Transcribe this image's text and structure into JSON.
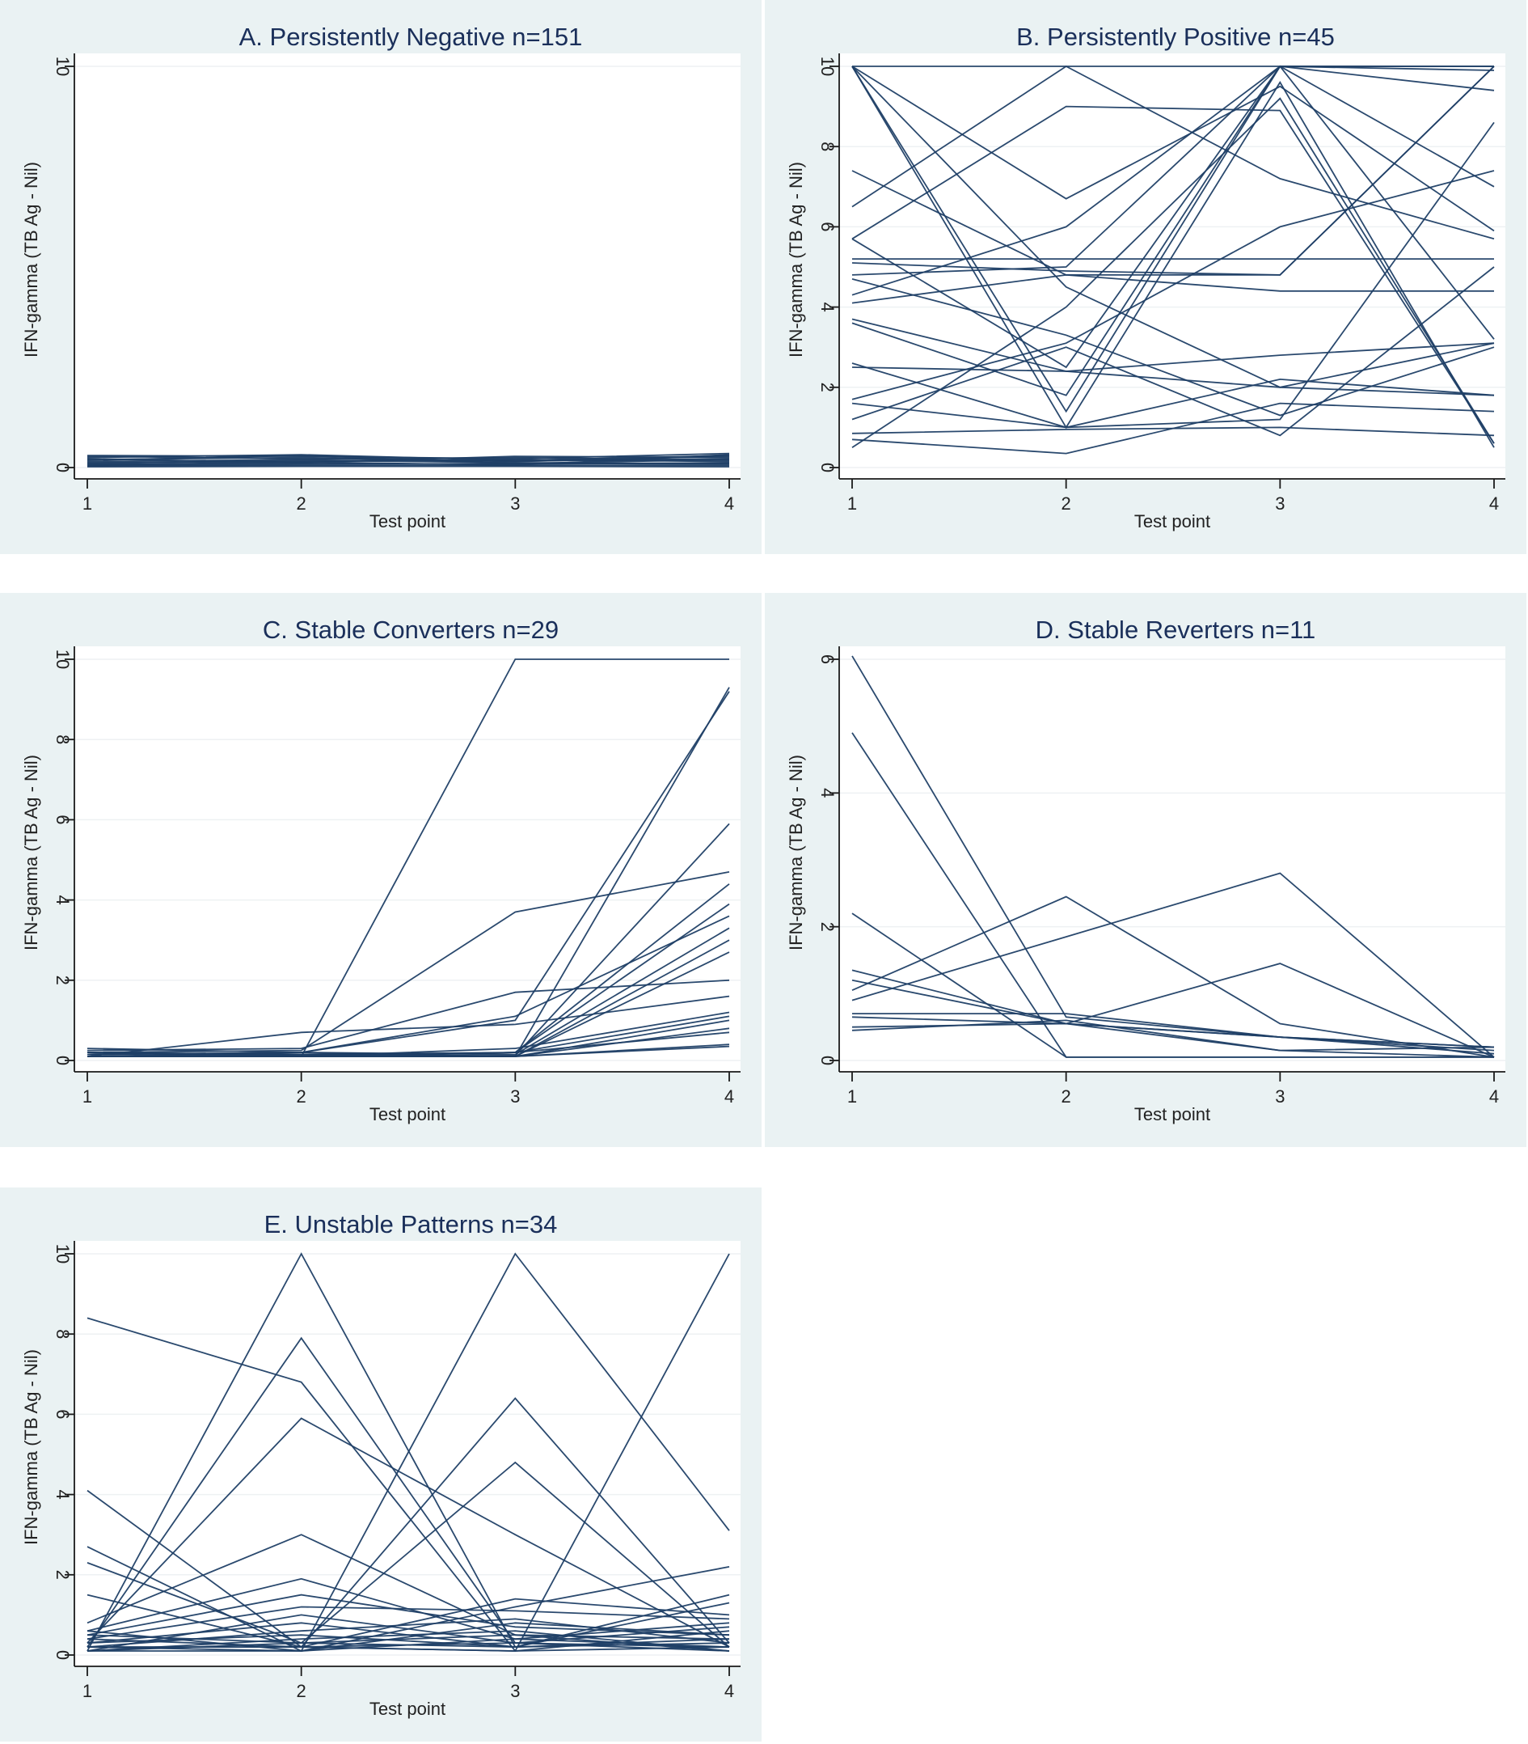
{
  "colors": {
    "line": "#1f3f66",
    "panel_bg": "#eaf2f3",
    "plot_bg": "#ffffff",
    "title": "#1a2f5a"
  },
  "chart_data": [
    {
      "type": "line",
      "panel": "A",
      "title": "A. Persistently Negative n=151",
      "xlabel": "Test point",
      "ylabel": "IFN-gamma (TB Ag - Nil)",
      "x": [
        1,
        2,
        3,
        4
      ],
      "xticks": [
        "1",
        "2",
        "3",
        "4"
      ],
      "ylim": [
        0,
        10
      ],
      "yticks": [
        "0",
        "10"
      ],
      "series": [
        {
          "values": [
            0.3,
            0.28,
            0.22,
            0.35
          ]
        },
        {
          "values": [
            0.25,
            0.32,
            0.18,
            0.3
          ]
        },
        {
          "values": [
            0.2,
            0.25,
            0.15,
            0.28
          ]
        },
        {
          "values": [
            0.18,
            0.3,
            0.1,
            0.2
          ]
        },
        {
          "values": [
            0.15,
            0.2,
            0.25,
            0.18
          ]
        },
        {
          "values": [
            0.12,
            0.15,
            0.2,
            0.15
          ]
        },
        {
          "values": [
            0.1,
            0.18,
            0.12,
            0.1
          ]
        },
        {
          "values": [
            0.08,
            0.1,
            0.08,
            0.12
          ]
        },
        {
          "values": [
            0.05,
            0.08,
            0.1,
            0.08
          ]
        },
        {
          "values": [
            0.03,
            0.05,
            0.05,
            0.05
          ]
        },
        {
          "values": [
            0.02,
            0.03,
            0.03,
            0.02
          ]
        },
        {
          "values": [
            0.22,
            0.12,
            0.28,
            0.25
          ]
        },
        {
          "values": [
            0.28,
            0.22,
            0.16,
            0.22
          ]
        },
        {
          "values": [
            0.06,
            0.14,
            0.06,
            0.32
          ]
        }
      ]
    },
    {
      "type": "line",
      "panel": "B",
      "title": "B. Persistently Positive n=45",
      "xlabel": "Test point",
      "ylabel": "IFN-gamma (TB Ag - Nil)",
      "x": [
        1,
        2,
        3,
        4
      ],
      "xticks": [
        "1",
        "2",
        "3",
        "4"
      ],
      "ylim": [
        0,
        10
      ],
      "yticks": [
        "0",
        "2",
        "4",
        "6",
        "8",
        "10"
      ],
      "series": [
        {
          "values": [
            10,
            10,
            10,
            10
          ]
        },
        {
          "values": [
            10,
            1.4,
            10,
            10
          ]
        },
        {
          "values": [
            10,
            1.0,
            9.6,
            0.5
          ]
        },
        {
          "values": [
            10,
            4.5,
            2.0,
            3.1
          ]
        },
        {
          "values": [
            10,
            6.7,
            9.5,
            5.9
          ]
        },
        {
          "values": [
            7.4,
            4.8,
            4.8,
            10
          ]
        },
        {
          "values": [
            6.5,
            10,
            7.2,
            5.7
          ]
        },
        {
          "values": [
            5.7,
            9.0,
            8.9,
            0.6
          ]
        },
        {
          "values": [
            5.7,
            2.5,
            10,
            9.9
          ]
        },
        {
          "values": [
            5.2,
            5.2,
            5.2,
            5.2
          ]
        },
        {
          "values": [
            5.1,
            4.9,
            4.8,
            10
          ]
        },
        {
          "values": [
            4.8,
            5.0,
            10,
            7.0
          ]
        },
        {
          "values": [
            4.7,
            3.3,
            1.3,
            3.0
          ]
        },
        {
          "values": [
            4.3,
            6.0,
            10,
            3.2
          ]
        },
        {
          "values": [
            4.1,
            4.8,
            4.4,
            4.4
          ]
        },
        {
          "values": [
            3.7,
            2.4,
            2.8,
            3.1
          ]
        },
        {
          "values": [
            3.6,
            1.8,
            10,
            9.4
          ]
        },
        {
          "values": [
            2.6,
            1.0,
            2.2,
            1.8
          ]
        },
        {
          "values": [
            2.5,
            2.4,
            2.0,
            1.8
          ]
        },
        {
          "values": [
            1.7,
            3.1,
            6.0,
            7.4
          ]
        },
        {
          "values": [
            1.6,
            1.0,
            1.2,
            8.6
          ]
        },
        {
          "values": [
            1.2,
            3.0,
            0.8,
            5.0
          ]
        },
        {
          "values": [
            0.85,
            0.95,
            1.0,
            0.8
          ]
        },
        {
          "values": [
            0.7,
            0.35,
            1.6,
            1.4
          ]
        },
        {
          "values": [
            0.5,
            4.0,
            9.2,
            0.6
          ]
        }
      ]
    },
    {
      "type": "line",
      "panel": "C",
      "title": "C. Stable Converters n=29",
      "xlabel": "Test point",
      "ylabel": "IFN-gamma (TB Ag - Nil)",
      "x": [
        1,
        2,
        3,
        4
      ],
      "xticks": [
        "1",
        "2",
        "3",
        "4"
      ],
      "ylim": [
        0,
        10
      ],
      "yticks": [
        "0",
        "2",
        "4",
        "6",
        "8",
        "10"
      ],
      "series": [
        {
          "values": [
            0.1,
            0.1,
            10,
            10
          ]
        },
        {
          "values": [
            0.2,
            0.25,
            3.7,
            4.7
          ]
        },
        {
          "values": [
            0.15,
            0.2,
            1.0,
            9.2
          ]
        },
        {
          "values": [
            0.1,
            0.1,
            0.1,
            9.3
          ]
        },
        {
          "values": [
            0.1,
            0.12,
            0.12,
            5.9
          ]
        },
        {
          "values": [
            0.2,
            0.15,
            0.2,
            4.4
          ]
        },
        {
          "values": [
            0.1,
            0.2,
            1.1,
            3.6
          ]
        },
        {
          "values": [
            0.3,
            0.2,
            0.15,
            3.3
          ]
        },
        {
          "values": [
            0.1,
            0.1,
            0.2,
            3.9
          ]
        },
        {
          "values": [
            0.2,
            0.1,
            0.1,
            2.7
          ]
        },
        {
          "values": [
            0.25,
            0.3,
            1.7,
            2.0
          ]
        },
        {
          "values": [
            0.1,
            0.7,
            0.9,
            1.6
          ]
        },
        {
          "values": [
            0.1,
            0.1,
            0.3,
            1.2
          ]
        },
        {
          "values": [
            0.2,
            0.1,
            0.1,
            1.0
          ]
        },
        {
          "values": [
            0.1,
            0.15,
            0.1,
            0.8
          ]
        },
        {
          "values": [
            0.2,
            0.1,
            0.2,
            0.7
          ]
        },
        {
          "values": [
            0.1,
            0.1,
            0.1,
            0.4
          ]
        },
        {
          "values": [
            0.15,
            0.2,
            0.1,
            0.35
          ]
        },
        {
          "values": [
            0.1,
            0.1,
            0.2,
            1.1
          ]
        },
        {
          "values": [
            0.2,
            0.15,
            0.1,
            3.0
          ]
        }
      ]
    },
    {
      "type": "line",
      "panel": "D",
      "title": "D. Stable Reverters n=11",
      "xlabel": "Test point",
      "ylabel": "IFN-gamma (TB Ag - Nil)",
      "x": [
        1,
        2,
        3,
        4
      ],
      "xticks": [
        "1",
        "2",
        "3",
        "4"
      ],
      "ylim": [
        0,
        6
      ],
      "yticks": [
        "0",
        "2",
        "4",
        "6"
      ],
      "series": [
        {
          "values": [
            6.05,
            0.65,
            0.35,
            0.15
          ]
        },
        {
          "values": [
            4.9,
            0.05,
            0.05,
            0.05
          ]
        },
        {
          "values": [
            2.2,
            0.05,
            0.05,
            0.05
          ]
        },
        {
          "values": [
            1.35,
            0.55,
            1.45,
            0.05
          ]
        },
        {
          "values": [
            1.2,
            0.55,
            0.35,
            0.2
          ]
        },
        {
          "values": [
            1.05,
            2.45,
            0.55,
            0.05
          ]
        },
        {
          "values": [
            0.9,
            1.85,
            2.8,
            0.05
          ]
        },
        {
          "values": [
            0.7,
            0.7,
            0.35,
            0.1
          ]
        },
        {
          "values": [
            0.65,
            0.55,
            0.15,
            0.2
          ]
        },
        {
          "values": [
            0.5,
            0.55,
            0.35,
            0.2
          ]
        },
        {
          "values": [
            0.45,
            0.6,
            0.15,
            0.05
          ]
        }
      ]
    },
    {
      "type": "line",
      "panel": "E",
      "title": "E. Unstable Patterns n=34",
      "xlabel": "Test point",
      "ylabel": "IFN-gamma (TB Ag - Nil)",
      "x": [
        1,
        2,
        3,
        4
      ],
      "xticks": [
        "1",
        "2",
        "3",
        "4"
      ],
      "ylim": [
        0,
        10
      ],
      "yticks": [
        "0",
        "2",
        "4",
        "6",
        "8",
        "10"
      ],
      "series": [
        {
          "values": [
            8.4,
            6.8,
            0.1,
            0.2
          ]
        },
        {
          "values": [
            0.1,
            10,
            0.2,
            0.3
          ]
        },
        {
          "values": [
            0.2,
            7.9,
            0.3,
            0.1
          ]
        },
        {
          "values": [
            0.3,
            5.9,
            3.0,
            0.2
          ]
        },
        {
          "values": [
            0.1,
            0.1,
            10,
            3.1
          ]
        },
        {
          "values": [
            0.2,
            0.2,
            6.4,
            0.3
          ]
        },
        {
          "values": [
            0.1,
            0.3,
            4.8,
            0.2
          ]
        },
        {
          "values": [
            0.2,
            0.2,
            0.1,
            10
          ]
        },
        {
          "values": [
            4.1,
            0.2,
            0.3,
            0.2
          ]
        },
        {
          "values": [
            2.7,
            0.1,
            1.2,
            2.2
          ]
        },
        {
          "values": [
            2.3,
            0.3,
            0.2,
            1.3
          ]
        },
        {
          "values": [
            1.5,
            0.2,
            1.4,
            1.0
          ]
        },
        {
          "values": [
            0.8,
            3.0,
            0.5,
            0.4
          ]
        },
        {
          "values": [
            0.6,
            1.9,
            0.4,
            0.8
          ]
        },
        {
          "values": [
            0.5,
            1.5,
            0.7,
            0.5
          ]
        },
        {
          "values": [
            0.4,
            1.2,
            1.1,
            0.9
          ]
        },
        {
          "values": [
            0.3,
            0.8,
            0.2,
            1.5
          ]
        },
        {
          "values": [
            0.2,
            0.6,
            0.9,
            0.3
          ]
        },
        {
          "values": [
            0.1,
            0.4,
            0.6,
            0.1
          ]
        },
        {
          "values": [
            0.4,
            0.2,
            0.1,
            0.6
          ]
        },
        {
          "values": [
            0.6,
            0.1,
            0.4,
            0.2
          ]
        },
        {
          "values": [
            0.3,
            0.5,
            0.2,
            0.4
          ]
        },
        {
          "values": [
            0.5,
            0.3,
            0.5,
            0.1
          ]
        },
        {
          "values": [
            0.1,
            1.0,
            0.3,
            0.7
          ]
        },
        {
          "values": [
            0.2,
            0.1,
            0.8,
            0.5
          ]
        }
      ]
    }
  ]
}
